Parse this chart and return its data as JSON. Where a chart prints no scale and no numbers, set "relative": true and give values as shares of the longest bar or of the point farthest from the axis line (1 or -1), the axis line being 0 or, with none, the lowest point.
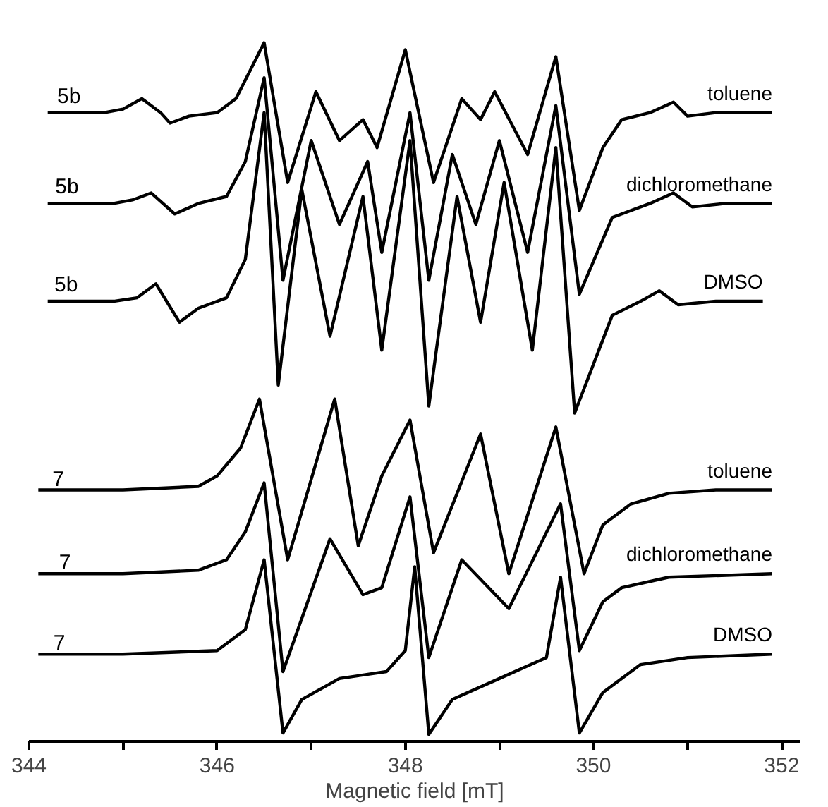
{
  "chart_data": {
    "type": "line",
    "relative": true,
    "xlabel": "Magnetic field [mT]",
    "xlim": [
      344,
      352.2
    ],
    "xticks": [
      344,
      {
        "value": 345,
        "label": null
      },
      346,
      {
        "value": 347,
        "label": null
      },
      348,
      {
        "value": 349,
        "label": null
      },
      350,
      {
        "value": 351,
        "label": null
      },
      352
    ],
    "grid": false,
    "legend": false,
    "marker": "none",
    "line_style": "solid",
    "series": [
      {
        "name": "toluene",
        "color": "#000000",
        "x": [
          344.2,
          344.8,
          345.0,
          345.2,
          345.4,
          345.5,
          345.7,
          346.0,
          346.2,
          346.35,
          346.5,
          346.75,
          347.05,
          347.3,
          347.55,
          347.7,
          348.0,
          348.3,
          348.6,
          348.8,
          348.95,
          349.3,
          349.6,
          349.85,
          350.1,
          350.3,
          350.6,
          350.85,
          351.0,
          351.3,
          351.9
        ],
        "values": [
          0.9,
          0.9,
          0.905,
          0.92,
          0.9,
          0.885,
          0.895,
          0.9,
          0.92,
          0.96,
          1.0,
          0.8,
          0.93,
          0.86,
          0.89,
          0.85,
          0.99,
          0.8,
          0.92,
          0.89,
          0.93,
          0.84,
          0.98,
          0.76,
          0.85,
          0.89,
          0.9,
          0.915,
          0.895,
          0.9,
          0.9
        ]
      },
      {
        "name": "dichloromethane",
        "color": "#000000",
        "x": [
          344.2,
          344.9,
          345.1,
          345.3,
          345.55,
          345.8,
          346.1,
          346.3,
          346.5,
          346.7,
          347.0,
          347.3,
          347.6,
          347.75,
          348.05,
          348.25,
          348.5,
          348.75,
          349.0,
          349.3,
          349.6,
          349.85,
          350.2,
          350.6,
          350.85,
          351.05,
          351.4,
          351.9
        ],
        "values": [
          0.77,
          0.77,
          0.775,
          0.785,
          0.755,
          0.77,
          0.78,
          0.83,
          0.95,
          0.66,
          0.86,
          0.74,
          0.83,
          0.7,
          0.9,
          0.66,
          0.84,
          0.74,
          0.86,
          0.7,
          0.91,
          0.64,
          0.75,
          0.77,
          0.785,
          0.765,
          0.77,
          0.77
        ]
      },
      {
        "name": "DMSO",
        "color": "#000000",
        "x": [
          344.2,
          344.9,
          345.15,
          345.35,
          345.6,
          345.8,
          346.1,
          346.3,
          346.5,
          346.65,
          346.9,
          347.2,
          347.55,
          347.75,
          348.05,
          348.25,
          348.55,
          348.8,
          349.05,
          349.35,
          349.6,
          349.8,
          350.2,
          350.5,
          350.7,
          350.9,
          351.3,
          351.8
        ],
        "values": [
          0.63,
          0.63,
          0.635,
          0.655,
          0.6,
          0.62,
          0.635,
          0.69,
          0.9,
          0.51,
          0.79,
          0.58,
          0.78,
          0.56,
          0.86,
          0.48,
          0.78,
          0.6,
          0.8,
          0.56,
          0.85,
          0.47,
          0.61,
          0.63,
          0.645,
          0.625,
          0.63,
          0.63
        ]
      },
      {
        "name": "toluene",
        "color": "#000000",
        "x": [
          344.1,
          345.0,
          345.8,
          346.0,
          346.25,
          346.45,
          346.75,
          347.25,
          347.5,
          347.75,
          348.05,
          348.3,
          348.8,
          349.1,
          349.6,
          349.9,
          350.1,
          350.4,
          350.8,
          351.3,
          351.9
        ],
        "values": [
          0.36,
          0.36,
          0.365,
          0.38,
          0.42,
          0.49,
          0.26,
          0.49,
          0.28,
          0.38,
          0.46,
          0.27,
          0.44,
          0.24,
          0.45,
          0.24,
          0.31,
          0.34,
          0.355,
          0.36,
          0.36
        ]
      },
      {
        "name": "dichloromethane",
        "color": "#000000",
        "x": [
          344.1,
          345.0,
          345.8,
          346.1,
          346.3,
          346.5,
          346.7,
          347.2,
          347.55,
          347.75,
          348.05,
          348.25,
          348.6,
          349.1,
          349.65,
          349.85,
          350.1,
          350.3,
          350.8,
          351.9
        ],
        "values": [
          0.24,
          0.24,
          0.245,
          0.26,
          0.3,
          0.37,
          0.1,
          0.29,
          0.21,
          0.22,
          0.35,
          0.12,
          0.26,
          0.19,
          0.34,
          0.13,
          0.2,
          0.22,
          0.235,
          0.24
        ]
      },
      {
        "name": "DMSO",
        "color": "#000000",
        "x": [
          344.1,
          345.0,
          346.0,
          346.3,
          346.5,
          346.7,
          346.9,
          347.3,
          347.8,
          348.0,
          348.1,
          348.25,
          348.5,
          349.0,
          349.5,
          349.65,
          349.85,
          350.1,
          350.5,
          351.0,
          351.9
        ],
        "values": [
          0.125,
          0.125,
          0.13,
          0.16,
          0.26,
          0.012,
          0.06,
          0.09,
          0.1,
          0.13,
          0.25,
          0.01,
          0.06,
          0.09,
          0.12,
          0.235,
          0.012,
          0.07,
          0.11,
          0.12,
          0.125
        ]
      }
    ],
    "annotations": [
      {
        "text": "5b",
        "x": 344.3,
        "y": 0.9
      },
      {
        "text": "5b",
        "x": 344.28,
        "y": 0.77
      },
      {
        "text": "5b",
        "x": 344.27,
        "y": 0.63
      },
      {
        "text": "7",
        "x": 344.25,
        "y": 0.36
      },
      {
        "text": "7",
        "x": 344.32,
        "y": 0.24
      },
      {
        "text": "7",
        "x": 344.26,
        "y": 0.125
      }
    ]
  }
}
